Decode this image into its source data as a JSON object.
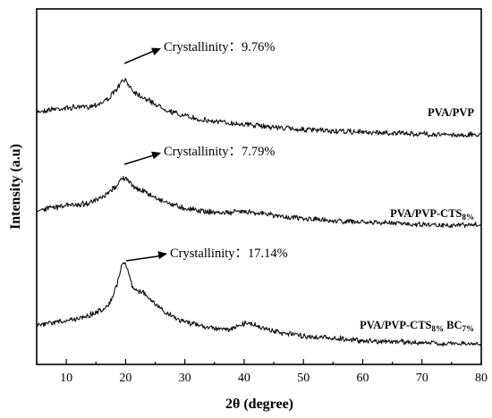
{
  "chart_data": {
    "type": "line",
    "xlabel": "2θ (degree)",
    "ylabel": "Intensity (a.u)",
    "xlim": [
      5,
      80
    ],
    "xticks": [
      10,
      20,
      30,
      40,
      50,
      60,
      70,
      80
    ],
    "yticks_shown": false,
    "grid": false,
    "series": [
      {
        "name": "PVA/PVP",
        "label_main": "PVA/PVP",
        "label_parts": [],
        "annotation": {
          "prefix": "Crystallinity：",
          "value": "9.76%"
        },
        "points": [
          [
            5,
            51
          ],
          [
            8,
            48
          ],
          [
            10,
            47
          ],
          [
            12,
            46
          ],
          [
            14,
            45
          ],
          [
            16,
            41
          ],
          [
            17.5,
            34
          ],
          [
            18.5,
            26
          ],
          [
            19.3,
            18
          ],
          [
            19.8,
            16
          ],
          [
            20.5,
            20
          ],
          [
            21.2,
            27
          ],
          [
            22,
            31
          ],
          [
            23,
            35
          ],
          [
            24,
            39
          ],
          [
            26,
            46
          ],
          [
            28,
            52
          ],
          [
            30,
            56
          ],
          [
            32,
            59
          ],
          [
            35,
            62
          ],
          [
            38,
            64
          ],
          [
            40,
            65
          ],
          [
            43,
            67
          ],
          [
            46,
            69
          ],
          [
            50,
            71
          ],
          [
            55,
            73
          ],
          [
            60,
            74
          ],
          [
            65,
            75
          ],
          [
            70,
            76
          ],
          [
            75,
            77
          ],
          [
            80,
            77
          ]
        ]
      },
      {
        "name": "PVA/PVP-CTS8%",
        "label_main": "PVA/PVP-CTS",
        "label_parts": [
          {
            "sub": "8%"
          }
        ],
        "annotation": {
          "prefix": "Crystallinity：",
          "value": "7.79%"
        },
        "points": [
          [
            5,
            48
          ],
          [
            8,
            45
          ],
          [
            10,
            43
          ],
          [
            12,
            42
          ],
          [
            14,
            40
          ],
          [
            16,
            35
          ],
          [
            17.5,
            27
          ],
          [
            18.5,
            20
          ],
          [
            19.3,
            14
          ],
          [
            19.8,
            12
          ],
          [
            20.5,
            16
          ],
          [
            21.2,
            21
          ],
          [
            22,
            24
          ],
          [
            23,
            27
          ],
          [
            24,
            31
          ],
          [
            26,
            37
          ],
          [
            28,
            42
          ],
          [
            30,
            46
          ],
          [
            32,
            48
          ],
          [
            35,
            51
          ],
          [
            38,
            51
          ],
          [
            40,
            49
          ],
          [
            43,
            52
          ],
          [
            46,
            55
          ],
          [
            50,
            58
          ],
          [
            55,
            60
          ],
          [
            60,
            62
          ],
          [
            65,
            63
          ],
          [
            70,
            64
          ],
          [
            75,
            65
          ],
          [
            80,
            65
          ]
        ]
      },
      {
        "name": "PVA/PVP-CTS8% BC7%",
        "label_main": "PVA/PVP-CTS",
        "label_parts": [
          {
            "sub": "8%"
          },
          {
            "text": " BC"
          },
          {
            "sub": "7%"
          }
        ],
        "annotation": {
          "prefix": "Crystallinity：",
          "value": "17.14%"
        },
        "points": [
          [
            5,
            60
          ],
          [
            8,
            57
          ],
          [
            10,
            55
          ],
          [
            12,
            53
          ],
          [
            14,
            50
          ],
          [
            16,
            46
          ],
          [
            17.5,
            38
          ],
          [
            18.5,
            24
          ],
          [
            19.3,
            6
          ],
          [
            19.8,
            2
          ],
          [
            20.5,
            12
          ],
          [
            21.2,
            26
          ],
          [
            22,
            28
          ],
          [
            23,
            30
          ],
          [
            24,
            36
          ],
          [
            26,
            45
          ],
          [
            28,
            52
          ],
          [
            30,
            56
          ],
          [
            32,
            59
          ],
          [
            35,
            62
          ],
          [
            38,
            63
          ],
          [
            40,
            58
          ],
          [
            41,
            57
          ],
          [
            43,
            62
          ],
          [
            46,
            66
          ],
          [
            50,
            69
          ],
          [
            55,
            71
          ],
          [
            60,
            73
          ],
          [
            65,
            74
          ],
          [
            70,
            75
          ],
          [
            75,
            76
          ],
          [
            80,
            76
          ]
        ]
      }
    ]
  }
}
